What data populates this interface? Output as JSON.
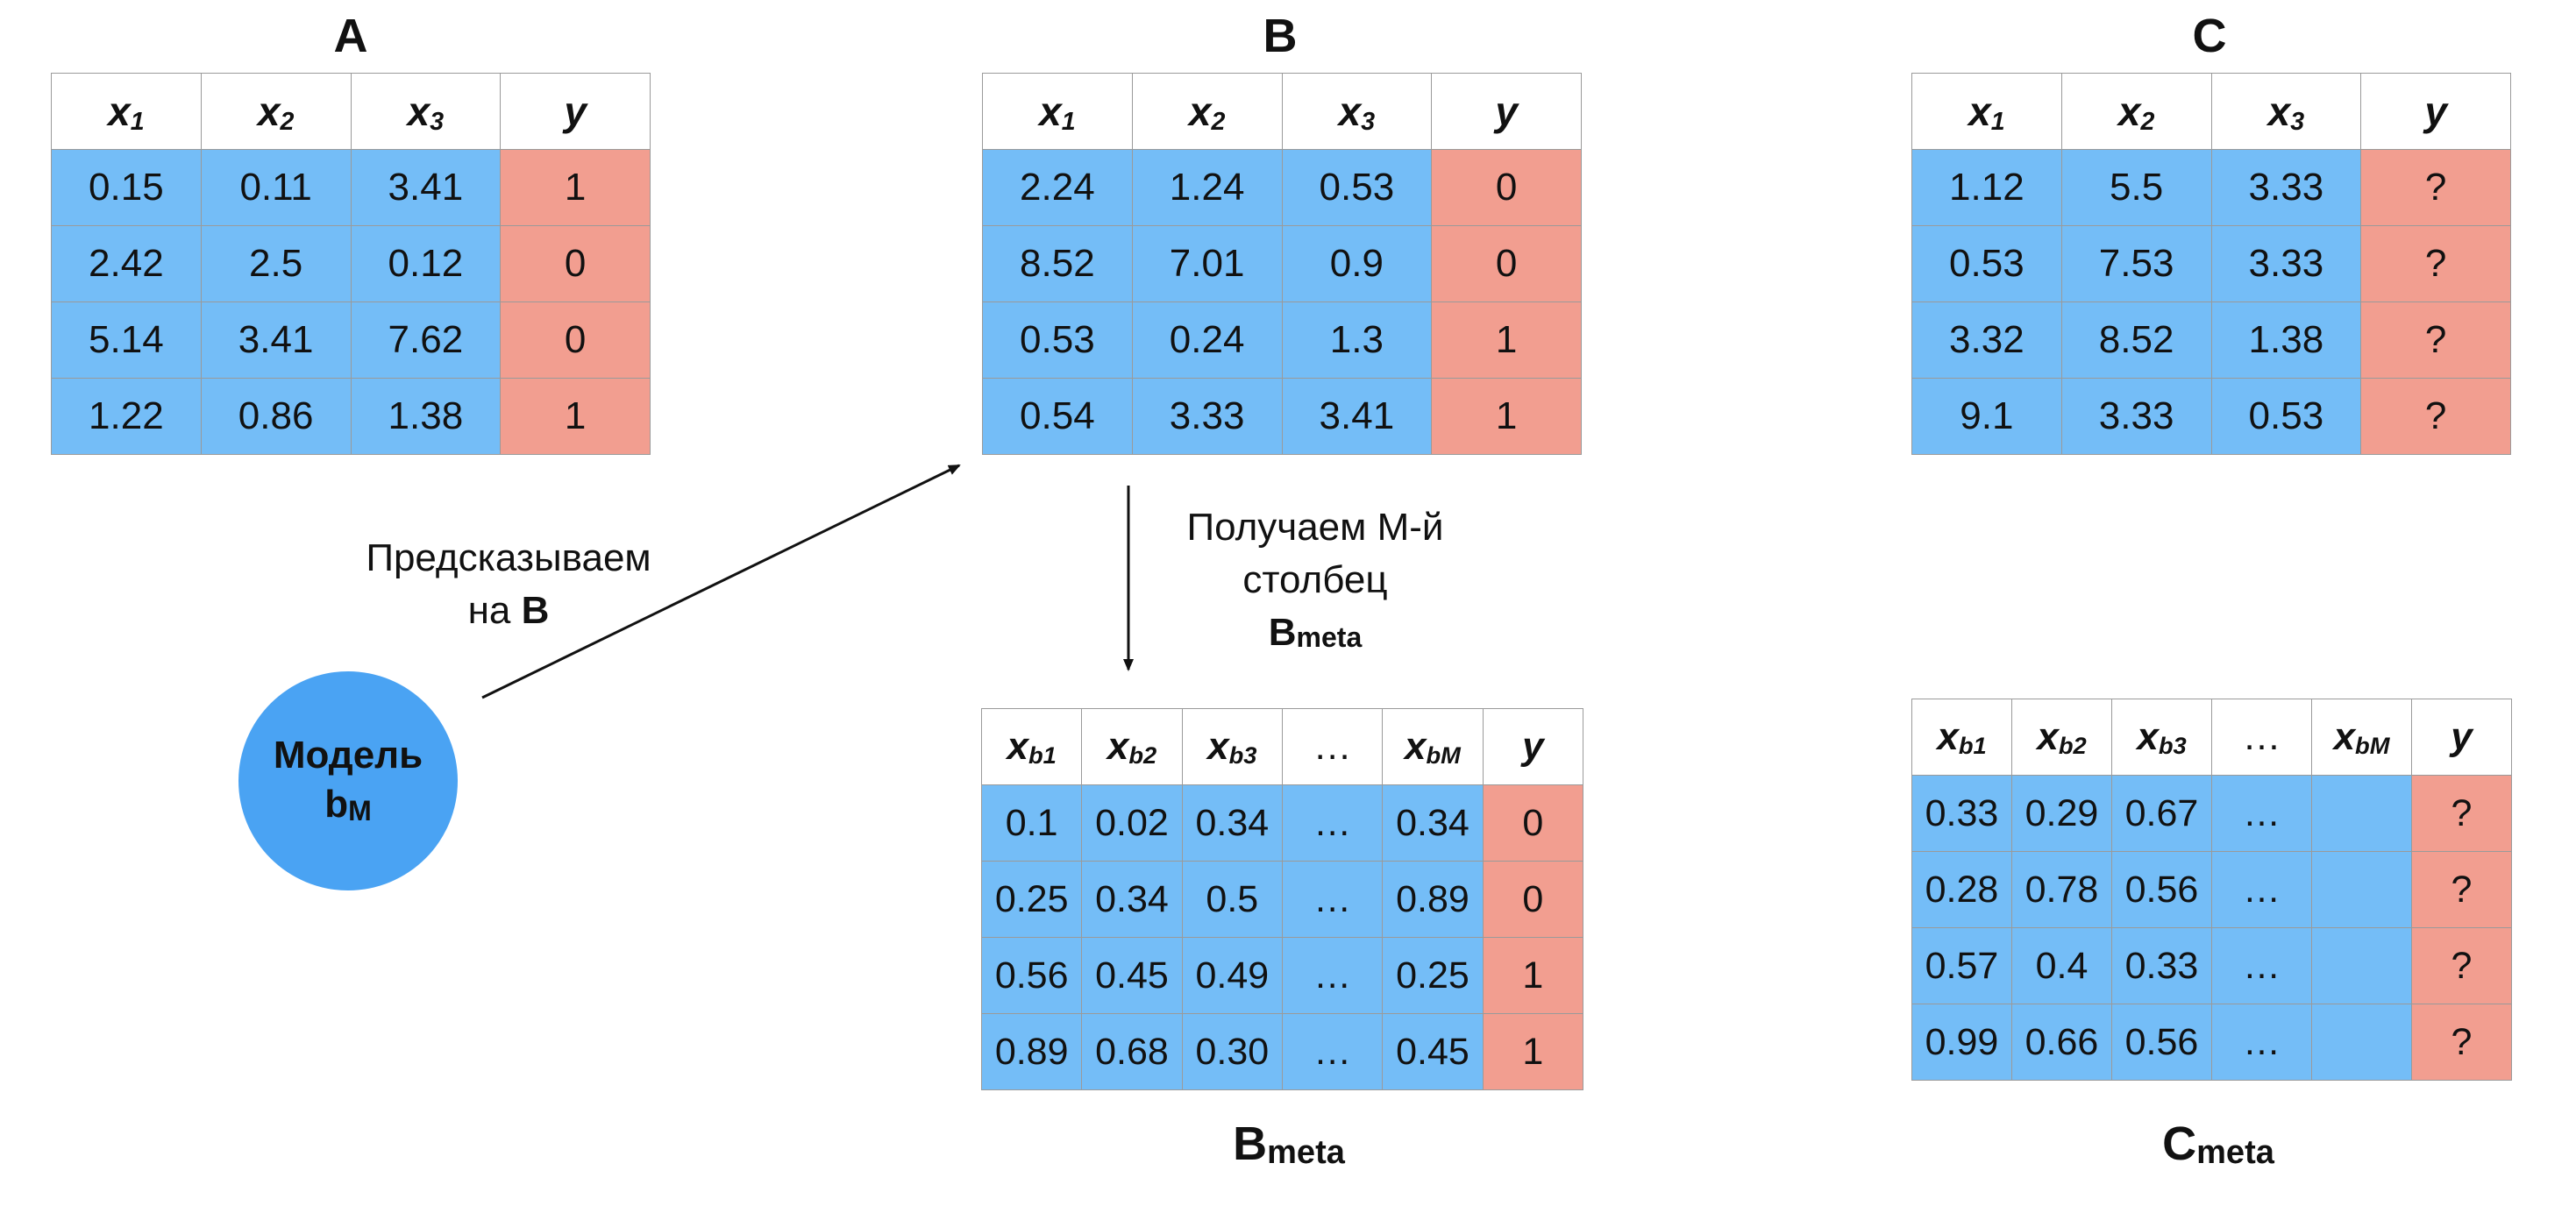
{
  "titles": {
    "a": "A",
    "b": "B",
    "c": "C"
  },
  "table_a": {
    "headers": [
      "x1",
      "x2",
      "x3",
      "y"
    ],
    "rows": [
      [
        "0.15",
        "0.11",
        "3.41",
        "1"
      ],
      [
        "2.42",
        "2.5",
        "0.12",
        "0"
      ],
      [
        "5.14",
        "3.41",
        "7.62",
        "0"
      ],
      [
        "1.22",
        "0.86",
        "1.38",
        "1"
      ]
    ]
  },
  "table_b": {
    "headers": [
      "x1",
      "x2",
      "x3",
      "y"
    ],
    "rows": [
      [
        "2.24",
        "1.24",
        "0.53",
        "0"
      ],
      [
        "8.52",
        "7.01",
        "0.9",
        "0"
      ],
      [
        "0.53",
        "0.24",
        "1.3",
        "1"
      ],
      [
        "0.54",
        "3.33",
        "3.41",
        "1"
      ]
    ]
  },
  "table_c": {
    "headers": [
      "x1",
      "x2",
      "x3",
      "y"
    ],
    "rows": [
      [
        "1.12",
        "5.5",
        "3.33",
        "?"
      ],
      [
        "0.53",
        "7.53",
        "3.33",
        "?"
      ],
      [
        "3.32",
        "8.52",
        "1.38",
        "?"
      ],
      [
        "9.1",
        "3.33",
        "0.53",
        "?"
      ]
    ]
  },
  "table_b_meta": {
    "headers": [
      "xb1",
      "xb2",
      "xb3",
      "…",
      "xbM",
      "y"
    ],
    "rows": [
      [
        "0.1",
        "0.02",
        "0.34",
        "…",
        "0.34",
        "0"
      ],
      [
        "0.25",
        "0.34",
        "0.5",
        "…",
        "0.89",
        "0"
      ],
      [
        "0.56",
        "0.45",
        "0.49",
        "…",
        "0.25",
        "1"
      ],
      [
        "0.89",
        "0.68",
        "0.30",
        "…",
        "0.45",
        "1"
      ]
    ]
  },
  "table_c_meta": {
    "headers": [
      "xb1",
      "xb2",
      "xb3",
      "…",
      "xbM",
      "y"
    ],
    "rows": [
      [
        "0.33",
        "0.29",
        "0.67",
        "…",
        "",
        "?"
      ],
      [
        "0.28",
        "0.78",
        "0.56",
        "…",
        "",
        "?"
      ],
      [
        "0.57",
        "0.4",
        "0.33",
        "…",
        "",
        "?"
      ],
      [
        "0.99",
        "0.66",
        "0.56",
        "…",
        "",
        "?"
      ]
    ]
  },
  "labels": {
    "predict_line1": "Предсказываем",
    "predict_line2_prefix": "на ",
    "predict_line2_bold": "B",
    "get_line1": "Получаем M-й",
    "get_line2": "столбец",
    "get_line3_main": "B",
    "get_line3_sub": "meta",
    "model_line1": "Модель",
    "model_line2_main": "b",
    "model_line2_sub": "M",
    "b_meta_caption_main": "B",
    "b_meta_caption_sub": "meta",
    "c_meta_caption_main": "C",
    "c_meta_caption_sub": "meta"
  },
  "colors": {
    "feature": "#74bdf7",
    "target": "#f29e90",
    "model": "#4aa3f3"
  }
}
